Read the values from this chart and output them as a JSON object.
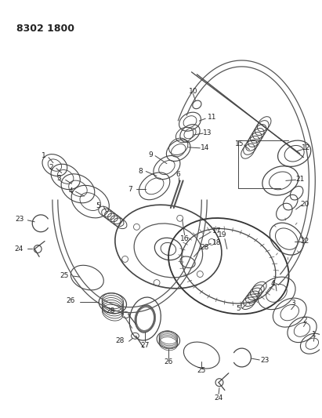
{
  "title": "8302 1800",
  "bg_color": "#ffffff",
  "lc": "#444444",
  "tc": "#222222",
  "fig_w": 4.11,
  "fig_h": 5.33,
  "dpi": 100
}
